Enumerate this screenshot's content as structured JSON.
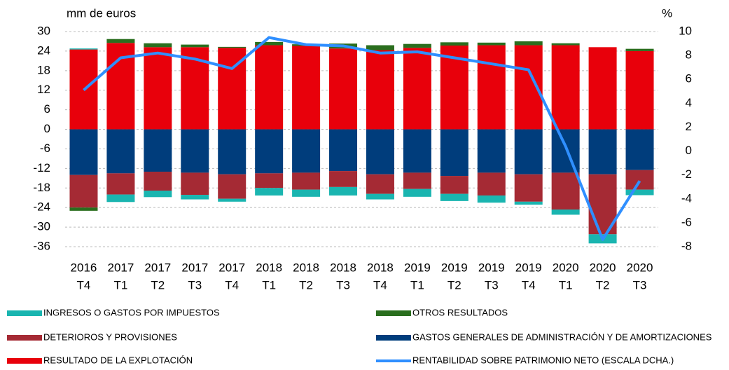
{
  "chart_data": {
    "type": "bar",
    "y_label": "mm de euros",
    "y2_label": "%",
    "categories": [
      [
        "2016",
        "T4"
      ],
      [
        "2017",
        "T1"
      ],
      [
        "2017",
        "T2"
      ],
      [
        "2017",
        "T3"
      ],
      [
        "2017",
        "T4"
      ],
      [
        "2018",
        "T1"
      ],
      [
        "2018",
        "T2"
      ],
      [
        "2018",
        "T3"
      ],
      [
        "2018",
        "T4"
      ],
      [
        "2019",
        "T1"
      ],
      [
        "2019",
        "T2"
      ],
      [
        "2019",
        "T3"
      ],
      [
        "2019",
        "T4"
      ],
      [
        "2020",
        "T1"
      ],
      [
        "2020",
        "T2"
      ],
      [
        "2020",
        "T3"
      ]
    ],
    "series": [
      {
        "name": "INGRESOS O GASTOS POR IMPUESTOS",
        "color": "#1ab5b0",
        "values": [
          0.3,
          -2.3,
          -2,
          -1.4,
          -0.9,
          -2.3,
          -2.2,
          -2.6,
          -1.7,
          -2.4,
          -2.2,
          -2.2,
          -0.9,
          -1.6,
          -2.8,
          -1.7
        ]
      },
      {
        "name": "OTROS RESULTADOS",
        "color": "#2a6e1e",
        "values": [
          -1,
          1.2,
          1.2,
          0.8,
          0.3,
          1,
          0.5,
          1.5,
          1.5,
          1.2,
          1,
          0.8,
          1.2,
          0.6,
          0,
          0.7
        ]
      },
      {
        "name": "DETERIOROS Y PROVISIONES",
        "color": "#a52a34",
        "values": [
          -10,
          -6.5,
          -5.8,
          -6.8,
          -7.5,
          -4.5,
          -5.2,
          -4.9,
          -6,
          -5,
          -5.5,
          -7,
          -8.4,
          -11.3,
          -18.4,
          -6
        ]
      },
      {
        "name": "GASTOS GENERALES DE ADMINISTRACIÓN Y DE AMORTIZACIONES",
        "color": "#003d7c",
        "values": [
          -14,
          -13.5,
          -13,
          -13.3,
          -13.8,
          -13.5,
          -13.3,
          -12.8,
          -13.8,
          -13.3,
          -14.3,
          -13.3,
          -13.8,
          -13.3,
          -13.8,
          -12.5
        ]
      },
      {
        "name": "RESULTADO DE LA EXPLOTACIÓN",
        "color": "#e8000b",
        "values": [
          24.5,
          26.5,
          25.2,
          25.2,
          25,
          25.8,
          25.6,
          24.8,
          24.3,
          25,
          25.7,
          25.8,
          25.8,
          25.8,
          25.2,
          24
        ]
      },
      {
        "name": "RENTABILIDAD SOBRE PATRIMONIO NETO  (ESCALA DCHA.)",
        "color": "#2f8fff",
        "type": "line",
        "axis": "y2",
        "values": [
          5.1,
          7.8,
          8.2,
          7.7,
          6.9,
          9.5,
          8.9,
          8.8,
          8.2,
          8.3,
          7.8,
          7.3,
          6.8,
          0.4,
          -7.4,
          -2.5
        ]
      }
    ],
    "ylim": [
      -36,
      30
    ],
    "yticks": [
      30,
      24,
      18,
      12,
      6,
      0,
      -6,
      -12,
      -18,
      -24,
      -30,
      -36
    ],
    "y2lim": [
      -8,
      10
    ],
    "y2ticks": [
      10,
      8,
      6,
      4,
      2,
      0,
      -2,
      -4,
      -6,
      -8
    ],
    "grid": true
  }
}
